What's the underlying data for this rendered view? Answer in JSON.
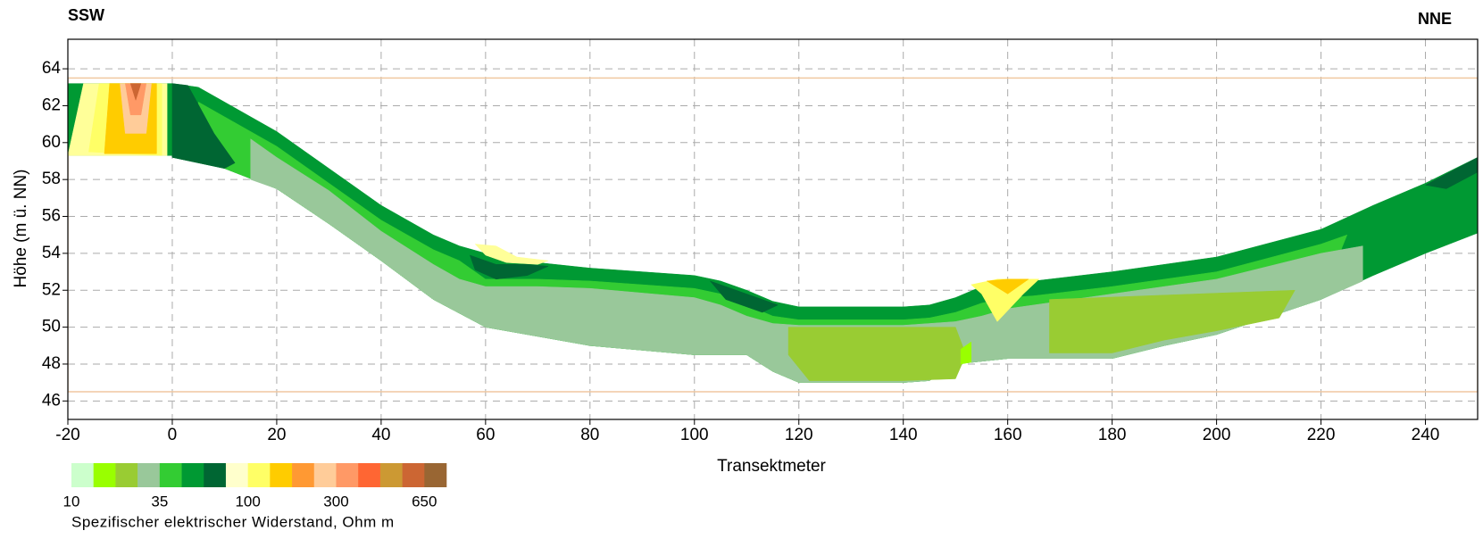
{
  "chart_data": {
    "type": "section",
    "title_left": "SSW",
    "title_right": "NNE",
    "x_label": "Transektmeter",
    "y_label": "Höhe (m ü. NN)",
    "xlim": [
      -20,
      250
    ],
    "ylim": [
      45,
      65.6
    ],
    "xticks": [
      -20,
      0,
      20,
      40,
      60,
      80,
      100,
      120,
      140,
      160,
      180,
      200,
      220,
      240
    ],
    "yticks": [
      46,
      48,
      50,
      52,
      54,
      56,
      58,
      60,
      62,
      64
    ],
    "grid": true,
    "model_extent": {
      "color": "#f0c8a0",
      "x": [
        -20,
        250
      ],
      "y": [
        46.5,
        63.5
      ]
    },
    "zones": [
      {
        "color": "#009933",
        "x": [
          -20,
          0,
          0,
          -20
        ],
        "y": [
          63.2,
          63.2,
          59.3,
          59.3
        ]
      },
      {
        "color": "#ffff99",
        "x": [
          -17,
          -1,
          -1,
          -20
        ],
        "y": [
          63.2,
          63.2,
          59.3,
          59.3
        ]
      },
      {
        "color": "#ffff66",
        "x": [
          -14,
          -2,
          -2,
          -16
        ],
        "y": [
          63.2,
          63.2,
          59.3,
          59.5
        ]
      },
      {
        "color": "#ffcc00",
        "x": [
          -12,
          -3,
          -3,
          -13
        ],
        "y": [
          63.2,
          63.2,
          59.4,
          59.4
        ]
      },
      {
        "color": "#ffcc99",
        "x": [
          -10,
          -4,
          -5,
          -9
        ],
        "y": [
          63.2,
          63.2,
          60.5,
          60.5
        ]
      },
      {
        "color": "#ff9966",
        "x": [
          -9,
          -5,
          -6,
          -8
        ],
        "y": [
          63.2,
          63.2,
          61.5,
          61.5
        ]
      },
      {
        "color": "#cc6633",
        "x": [
          -8,
          -6,
          -7
        ],
        "y": [
          63.2,
          63.2,
          62.3
        ]
      },
      {
        "color": "#009933",
        "x": [
          0,
          5,
          10,
          20,
          30,
          40,
          50,
          55,
          60,
          70,
          80,
          100,
          105,
          110,
          115,
          120,
          140,
          145,
          150,
          155,
          160,
          165,
          180,
          200,
          220,
          230,
          240,
          250,
          250,
          240,
          230,
          220,
          200,
          190,
          180,
          160,
          150,
          145,
          140,
          120,
          115,
          110,
          100,
          80,
          70,
          60,
          50,
          40,
          30,
          20,
          10,
          0
        ],
        "y": [
          63.2,
          63,
          62.2,
          60.6,
          58.6,
          56.6,
          55,
          54.4,
          54,
          53.5,
          53.2,
          52.8,
          52.5,
          52,
          51.4,
          51.1,
          51.1,
          51.2,
          51.6,
          52.2,
          52.5,
          52.5,
          53,
          53.8,
          55.3,
          56.6,
          57.8,
          59.2,
          55.1,
          54,
          52.8,
          51.5,
          49.6,
          49,
          48.3,
          48.3,
          48,
          47.1,
          47,
          47,
          47.6,
          48.5,
          48.5,
          49,
          49.5,
          50,
          51.5,
          53.6,
          55.6,
          57.5,
          58.6,
          59.2
        ]
      },
      {
        "color": "#33cc33",
        "x": [
          5,
          10,
          20,
          30,
          40,
          50,
          55,
          60,
          70,
          80,
          100,
          105,
          110,
          115,
          120,
          140,
          145,
          150,
          155,
          160,
          165,
          180,
          200,
          220,
          225,
          220,
          200,
          190,
          180,
          160,
          150,
          145,
          140,
          120,
          115,
          110,
          100,
          80,
          70,
          60,
          50,
          40,
          30,
          20,
          10,
          5
        ],
        "y": [
          62.2,
          61.4,
          59.8,
          57.8,
          55.8,
          54.2,
          53.6,
          52.6,
          52.6,
          52.5,
          52.1,
          51.8,
          51.2,
          50.6,
          50.4,
          50.4,
          50.5,
          50.8,
          51.3,
          51.6,
          51.7,
          52.2,
          53,
          54.5,
          55,
          51.5,
          49.6,
          49,
          48.3,
          48.3,
          48,
          47.1,
          47,
          47,
          47.6,
          48.5,
          48.5,
          49,
          49.5,
          50,
          51.5,
          53.6,
          55.6,
          57.5,
          58.6,
          59
        ]
      },
      {
        "color": "#99c89a",
        "x": [
          15,
          20,
          30,
          40,
          50,
          55,
          60,
          70,
          80,
          100,
          105,
          110,
          115,
          120,
          140,
          145,
          150,
          155,
          160,
          165,
          180,
          200,
          220,
          228,
          228,
          220,
          200,
          190,
          180,
          160,
          150,
          145,
          140,
          120,
          115,
          110,
          100,
          80,
          70,
          60,
          50,
          40,
          30,
          20,
          15
        ],
        "y": [
          60.2,
          59.2,
          57.4,
          55.2,
          53.4,
          52.6,
          52.2,
          52.2,
          52.1,
          51.6,
          51.2,
          50.6,
          50.2,
          50.1,
          50.1,
          50.2,
          50.3,
          50.6,
          51,
          51.2,
          51.8,
          52.6,
          54,
          54.4,
          52.5,
          51.5,
          49.6,
          49,
          48.3,
          48.3,
          48,
          47.1,
          47,
          47,
          47.6,
          48.5,
          48.5,
          49,
          49.5,
          50,
          51.5,
          53.6,
          55.6,
          57.5,
          58
        ]
      },
      {
        "color": "#99cc33",
        "x": [
          118,
          150,
          152,
          150,
          140,
          122,
          118
        ],
        "y": [
          50,
          50,
          48.5,
          47.2,
          47.1,
          47.1,
          48.5
        ]
      },
      {
        "color": "#99cc33",
        "x": [
          168,
          215,
          212,
          200,
          190,
          180,
          168
        ],
        "y": [
          51.5,
          52,
          50.5,
          49.8,
          49.3,
          48.6,
          48.6
        ]
      },
      {
        "color": "#006633",
        "x": [
          240,
          250,
          250,
          244
        ],
        "y": [
          57.7,
          59.2,
          58.4,
          57.5
        ]
      },
      {
        "color": "#006633",
        "x": [
          0,
          3,
          8,
          12,
          10,
          0
        ],
        "y": [
          63.2,
          63.1,
          60.5,
          58.9,
          58.6,
          59.2
        ]
      },
      {
        "color": "#ffff99",
        "x": [
          58,
          62,
          66,
          72,
          70,
          64,
          60
        ],
        "y": [
          54.5,
          54.4,
          53.8,
          53.6,
          53.4,
          53.5,
          53.9
        ]
      },
      {
        "color": "#006633",
        "x": [
          57,
          62,
          68,
          72,
          68,
          62,
          58
        ],
        "y": [
          53.9,
          53.4,
          53.4,
          53.3,
          52.8,
          52.6,
          53.1
        ]
      },
      {
        "color": "#006633",
        "x": [
          103,
          110,
          116,
          113,
          106
        ],
        "y": [
          52.5,
          51.8,
          51.2,
          50.8,
          51.5
        ]
      },
      {
        "color": "#ffff66",
        "x": [
          153,
          158,
          166,
          163,
          158,
          155
        ],
        "y": [
          52.3,
          52.6,
          52.6,
          51.8,
          50.3,
          51.8
        ]
      },
      {
        "color": "#ffcc00",
        "x": [
          156,
          160,
          164,
          160
        ],
        "y": [
          52.5,
          52.6,
          52.6,
          51.8
        ]
      },
      {
        "color": "#99ff00",
        "x": [
          151,
          153,
          153,
          151
        ],
        "y": [
          48.8,
          49.2,
          48.1,
          48
        ]
      }
    ],
    "colorbar": {
      "label": "Spezifischer elektrischer Widerstand, Ohm m",
      "colors": [
        "#ccffcc",
        "#99ff00",
        "#99cc33",
        "#99c89a",
        "#33cc33",
        "#009933",
        "#006633",
        "#ffffcc",
        "#ffff66",
        "#ffcc00",
        "#ff9933",
        "#ffcc99",
        "#ff9966",
        "#ff6633",
        "#cc9933",
        "#cc6633",
        "#996633"
      ],
      "levels": [
        10,
        13,
        18,
        25,
        35,
        45,
        60,
        80,
        100,
        130,
        170,
        230,
        300,
        360,
        430,
        530,
        650,
        800
      ],
      "ticks": [
        10,
        35,
        100,
        300,
        650
      ]
    }
  }
}
